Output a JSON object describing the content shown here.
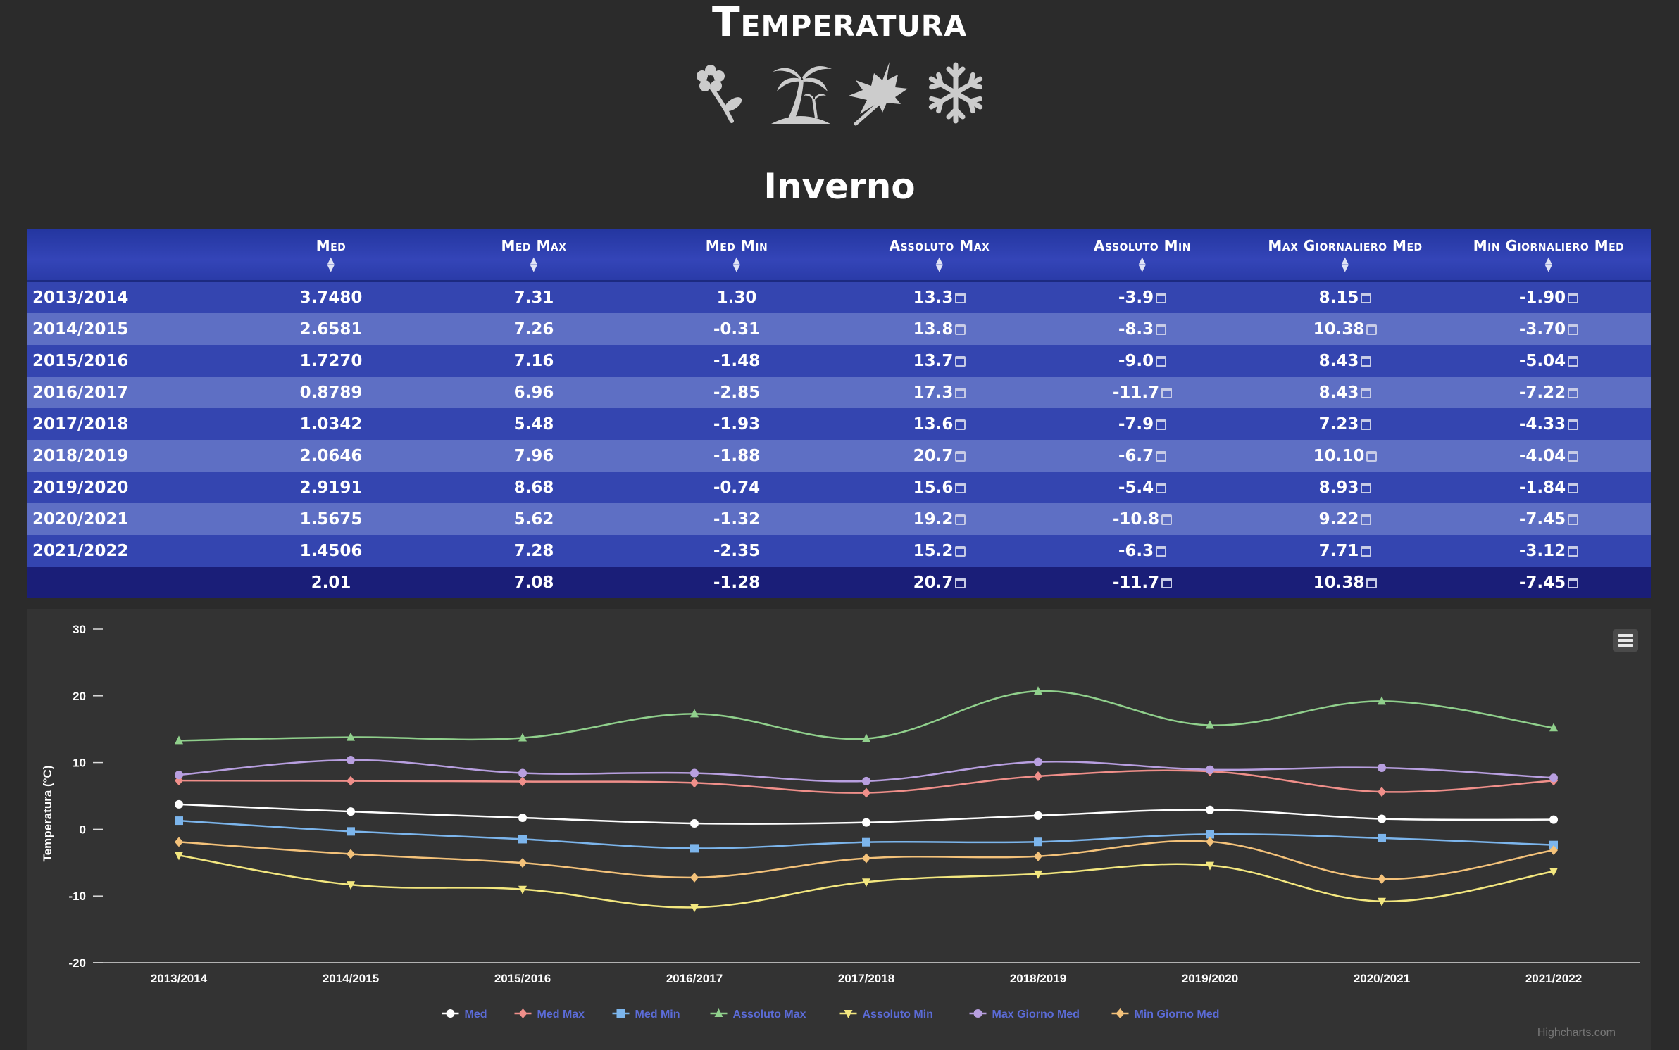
{
  "header": {
    "title": "Temperatura",
    "section": "Inverno"
  },
  "season_icons": [
    "flower-icon",
    "palm-tree-icon",
    "maple-leaf-icon",
    "snowflake-icon"
  ],
  "colors": {
    "page_bg": "#2b2b2b",
    "chart_bg": "#333333",
    "header_bg": "#2e3fae",
    "row_odd": "#3445b0",
    "row_even": "#5e6fc4",
    "row_total": "#1a1e78",
    "legend_text": "#5b6bd6"
  },
  "table": {
    "columns": [
      "",
      "Med",
      "Med Max",
      "Med Min",
      "Assoluto Max",
      "Assoluto Min",
      "Max Giornaliero Med",
      "Min Giornaliero Med"
    ],
    "rows": [
      [
        "2013/2014",
        "3.7480",
        "7.31",
        "1.30",
        "13.3",
        "-3.9",
        "8.15",
        "-1.90"
      ],
      [
        "2014/2015",
        "2.6581",
        "7.26",
        "-0.31",
        "13.8",
        "-8.3",
        "10.38",
        "-3.70"
      ],
      [
        "2015/2016",
        "1.7270",
        "7.16",
        "-1.48",
        "13.7",
        "-9.0",
        "8.43",
        "-5.04"
      ],
      [
        "2016/2017",
        "0.8789",
        "6.96",
        "-2.85",
        "17.3",
        "-11.7",
        "8.43",
        "-7.22"
      ],
      [
        "2017/2018",
        "1.0342",
        "5.48",
        "-1.93",
        "13.6",
        "-7.9",
        "7.23",
        "-4.33"
      ],
      [
        "2018/2019",
        "2.0646",
        "7.96",
        "-1.88",
        "20.7",
        "-6.7",
        "10.10",
        "-4.04"
      ],
      [
        "2019/2020",
        "2.9191",
        "8.68",
        "-0.74",
        "15.6",
        "-5.4",
        "8.93",
        "-1.84"
      ],
      [
        "2020/2021",
        "1.5675",
        "5.62",
        "-1.32",
        "19.2",
        "-10.8",
        "9.22",
        "-7.45"
      ],
      [
        "2021/2022",
        "1.4506",
        "7.28",
        "-2.35",
        "15.2",
        "-6.3",
        "7.71",
        "-3.12"
      ]
    ],
    "total": [
      "",
      "2.01",
      "7.08",
      "-1.28",
      "20.7",
      "-11.7",
      "10.38",
      "-7.45"
    ]
  },
  "chart_data": {
    "type": "line",
    "ylabel": "Temperatura (°C)",
    "ylim": [
      -20,
      30
    ],
    "yticks": [
      -20,
      -10,
      0,
      10,
      20,
      30
    ],
    "categories": [
      "2013/2014",
      "2014/2015",
      "2015/2016",
      "2016/2017",
      "2017/2018",
      "2018/2019",
      "2019/2020",
      "2020/2021",
      "2021/2022"
    ],
    "legend_position": "bottom-center",
    "credit": "Highcharts.com",
    "series": [
      {
        "name": "Med",
        "color": "#ffffff",
        "marker": "circle",
        "values": [
          3.75,
          2.66,
          1.73,
          0.88,
          1.03,
          2.06,
          2.92,
          1.57,
          1.45
        ]
      },
      {
        "name": "Med Max",
        "color": "#f08f8a",
        "marker": "diamond",
        "values": [
          7.31,
          7.26,
          7.16,
          6.96,
          5.48,
          7.96,
          8.68,
          5.62,
          7.28
        ]
      },
      {
        "name": "Med Min",
        "color": "#7cb5ec",
        "marker": "square",
        "values": [
          1.3,
          -0.31,
          -1.48,
          -2.85,
          -1.93,
          -1.88,
          -0.74,
          -1.32,
          -2.35
        ]
      },
      {
        "name": "Assoluto Max",
        "color": "#90d08c",
        "marker": "triangle",
        "values": [
          13.3,
          13.8,
          13.7,
          17.3,
          13.6,
          20.7,
          15.6,
          19.2,
          15.2
        ]
      },
      {
        "name": "Assoluto Min",
        "color": "#f3e77f",
        "marker": "triangle-down",
        "values": [
          -3.9,
          -8.3,
          -9.0,
          -11.7,
          -7.9,
          -6.7,
          -5.4,
          -10.8,
          -6.3
        ]
      },
      {
        "name": "Max Giorno Med",
        "color": "#b89fe0",
        "marker": "circle",
        "values": [
          8.15,
          10.38,
          8.43,
          8.43,
          7.23,
          10.1,
          8.93,
          9.22,
          7.71
        ]
      },
      {
        "name": "Min Giorno Med",
        "color": "#f4c27a",
        "marker": "diamond",
        "values": [
          -1.9,
          -3.7,
          -5.04,
          -7.22,
          -4.33,
          -4.04,
          -1.84,
          -7.45,
          -3.12
        ]
      }
    ]
  }
}
